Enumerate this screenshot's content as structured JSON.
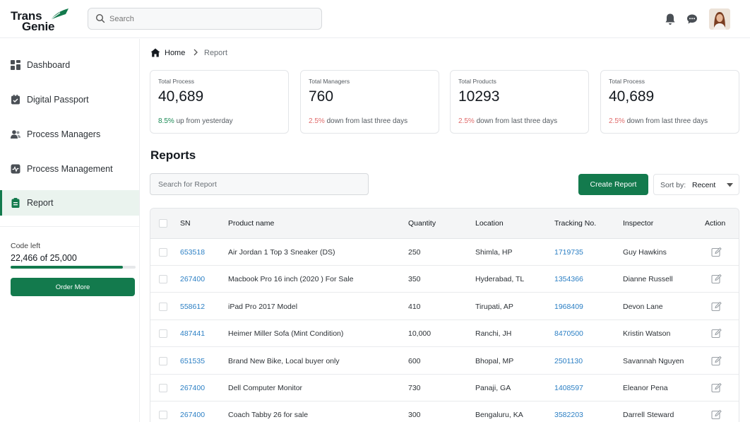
{
  "brand": {
    "line1": "Trans",
    "line2": "Genie",
    "accent": "#137a4d"
  },
  "header": {
    "search_placeholder": "Search",
    "icons": [
      "bell-icon",
      "chat-icon"
    ],
    "avatar": "user-avatar"
  },
  "sidebar": {
    "items": [
      {
        "label": "Dashboard",
        "icon": "dashboard-icon",
        "active": false
      },
      {
        "label": "Digital Passport",
        "icon": "passport-icon",
        "active": false
      },
      {
        "label": "Process Managers",
        "icon": "users-icon",
        "active": false
      },
      {
        "label": "Process Management",
        "icon": "activity-icon",
        "active": false
      },
      {
        "label": "Report",
        "icon": "report-icon",
        "active": true
      }
    ],
    "code_left": {
      "label": "Code left",
      "value": "22,466 of 25,000",
      "used": 22466,
      "total": 25000
    },
    "order_button": "Order More"
  },
  "breadcrumb": {
    "home": "Home",
    "current": "Report"
  },
  "stats": [
    {
      "label": "Total Process",
      "value": "40,689",
      "pct": "8.5%",
      "trend": "up",
      "suffix": " up from yesterday"
    },
    {
      "label": "Total Managers",
      "value": "760",
      "pct": "2.5%",
      "trend": "down",
      "suffix": " down from last three days"
    },
    {
      "label": "Total Products",
      "value": "10293",
      "pct": "2.5%",
      "trend": "down",
      "suffix": " down from last three days"
    },
    {
      "label": "Total Process",
      "value": "40,689",
      "pct": "2.5%",
      "trend": "down",
      "suffix": " down from last three days"
    }
  ],
  "reports": {
    "title": "Reports",
    "search_placeholder": "Search for Report",
    "create_button": "Create Report",
    "sort": {
      "label": "Sort by:",
      "value": "Recent"
    },
    "columns": [
      "SN",
      "Product name",
      "Quantity",
      "Location",
      "Tracking No.",
      "Inspector",
      "Action"
    ],
    "rows": [
      {
        "sn": "653518",
        "product": "Air Jordan 1 Top 3 Sneaker (DS)",
        "qty": "250",
        "location": "Shimla, HP",
        "tracking": "1719735",
        "inspector": "Guy Hawkins"
      },
      {
        "sn": "267400",
        "product": "Macbook Pro 16 inch (2020 ) For Sale",
        "qty": "350",
        "location": "Hyderabad, TL",
        "tracking": "1354366",
        "inspector": "Dianne Russell"
      },
      {
        "sn": "558612",
        "product": "iPad Pro 2017 Model",
        "qty": "410",
        "location": "Tirupati, AP",
        "tracking": "1968409",
        "inspector": "Devon Lane"
      },
      {
        "sn": "487441",
        "product": "Heimer Miller Sofa (Mint Condition)",
        "qty": "10,000",
        "location": "Ranchi, JH",
        "tracking": "8470500",
        "inspector": "Kristin Watson"
      },
      {
        "sn": "651535",
        "product": "Brand New Bike, Local buyer only",
        "qty": "600",
        "location": "Bhopal, MP",
        "tracking": "2501130",
        "inspector": "Savannah Nguyen"
      },
      {
        "sn": "267400",
        "product": "Dell Computer Monitor",
        "qty": "730",
        "location": "Panaji, GA",
        "tracking": "1408597",
        "inspector": "Eleanor Pena"
      },
      {
        "sn": "267400",
        "product": "Coach Tabby 26 for sale",
        "qty": "300",
        "location": "Bengaluru, KA",
        "tracking": "3582203",
        "inspector": "Darrell Steward"
      }
    ]
  }
}
